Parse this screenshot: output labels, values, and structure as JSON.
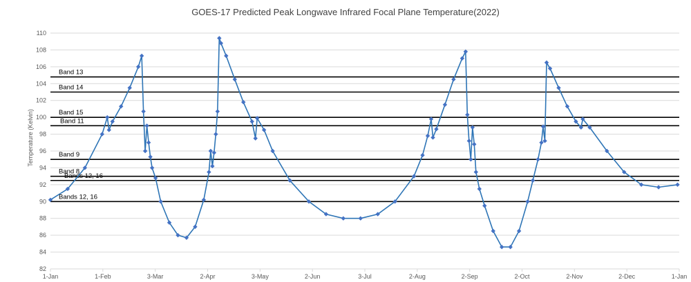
{
  "colors": {
    "series": "#2E75B6",
    "marker": "#4472C4",
    "grid": "#D9D9D9",
    "band_line": "#000000",
    "text": "#595959"
  },
  "chart_data": {
    "type": "line",
    "title": "GOES-17 Predicted Peak Longwave Infrared Focal Plane Temperature(2022)",
    "xlabel": "",
    "ylabel": "Temperature (Kelvin)",
    "xlim": [
      "2022-01-01",
      "2023-01-01"
    ],
    "ylim": [
      82,
      110
    ],
    "grid": "horizontal",
    "x_ticks": [
      "1-Jan",
      "1-Feb",
      "3-Mar",
      "2-Apr",
      "3-May",
      "2-Jun",
      "3-Jul",
      "2-Aug",
      "2-Sep",
      "2-Oct",
      "2-Nov",
      "2-Dec",
      "1-Jan"
    ],
    "y_ticks": [
      "82",
      "84",
      "86",
      "88",
      "90",
      "92",
      "94",
      "96",
      "98",
      "100",
      "102",
      "104",
      "106",
      "108",
      "110"
    ],
    "reference_lines": [
      {
        "label": "Band 13",
        "y": 104.8
      },
      {
        "label": "Band 14",
        "y": 103.0
      },
      {
        "label": "Band 15",
        "y": 100.0
      },
      {
        "label": "Band 11",
        "y": 99.0
      },
      {
        "label": "Band 9",
        "y": 95.0
      },
      {
        "label": "Band 8",
        "y": 93.0
      },
      {
        "label": "Bands 12, 16",
        "y": 92.5
      },
      {
        "label": "Bands 12, 16",
        "y": 90.0
      }
    ],
    "series": [
      {
        "points": [
          [
            "2022-01-01",
            90.2
          ],
          [
            "2022-01-11",
            91.5
          ],
          [
            "2022-01-21",
            94.0
          ],
          [
            "2022-01-31",
            98.0
          ],
          [
            "2022-02-03",
            100.0
          ],
          [
            "2022-02-04",
            98.5
          ],
          [
            "2022-02-06",
            99.5
          ],
          [
            "2022-02-11",
            101.3
          ],
          [
            "2022-02-16",
            103.5
          ],
          [
            "2022-02-21",
            106.0
          ],
          [
            "2022-02-23",
            107.3
          ],
          [
            "2022-02-24",
            100.7
          ],
          [
            "2022-02-25",
            96.0
          ],
          [
            "2022-02-26",
            99.0
          ],
          [
            "2022-02-27",
            97.0
          ],
          [
            "2022-02-28",
            95.3
          ],
          [
            "2022-03-01",
            94.0
          ],
          [
            "2022-03-03",
            92.8
          ],
          [
            "2022-03-06",
            90.0
          ],
          [
            "2022-03-11",
            87.5
          ],
          [
            "2022-03-16",
            86.0
          ],
          [
            "2022-03-21",
            85.7
          ],
          [
            "2022-03-26",
            87.0
          ],
          [
            "2022-03-31",
            90.2
          ],
          [
            "2022-04-03",
            93.5
          ],
          [
            "2022-04-04",
            96.0
          ],
          [
            "2022-04-05",
            94.2
          ],
          [
            "2022-04-06",
            95.8
          ],
          [
            "2022-04-07",
            98.0
          ],
          [
            "2022-04-08",
            100.7
          ],
          [
            "2022-04-09",
            109.4
          ],
          [
            "2022-04-10",
            108.8
          ],
          [
            "2022-04-13",
            107.3
          ],
          [
            "2022-04-18",
            104.5
          ],
          [
            "2022-04-23",
            101.8
          ],
          [
            "2022-04-28",
            99.5
          ],
          [
            "2022-04-30",
            97.5
          ],
          [
            "2022-05-01",
            99.9
          ],
          [
            "2022-05-05",
            98.5
          ],
          [
            "2022-05-10",
            96.0
          ],
          [
            "2022-05-20",
            92.5
          ],
          [
            "2022-05-31",
            90.0
          ],
          [
            "2022-06-10",
            88.5
          ],
          [
            "2022-06-20",
            88.0
          ],
          [
            "2022-06-30",
            88.0
          ],
          [
            "2022-07-10",
            88.5
          ],
          [
            "2022-07-20",
            90.0
          ],
          [
            "2022-07-31",
            93.0
          ],
          [
            "2022-08-05",
            95.5
          ],
          [
            "2022-08-08",
            97.8
          ],
          [
            "2022-08-10",
            99.8
          ],
          [
            "2022-08-11",
            97.6
          ],
          [
            "2022-08-13",
            98.6
          ],
          [
            "2022-08-18",
            101.5
          ],
          [
            "2022-08-23",
            104.5
          ],
          [
            "2022-08-28",
            107.0
          ],
          [
            "2022-08-30",
            107.8
          ],
          [
            "2022-08-31",
            100.3
          ],
          [
            "2022-09-01",
            97.2
          ],
          [
            "2022-09-02",
            95.0
          ],
          [
            "2022-09-03",
            98.8
          ],
          [
            "2022-09-04",
            96.8
          ],
          [
            "2022-09-05",
            93.5
          ],
          [
            "2022-09-07",
            91.5
          ],
          [
            "2022-09-10",
            89.5
          ],
          [
            "2022-09-15",
            86.5
          ],
          [
            "2022-09-20",
            84.6
          ],
          [
            "2022-09-25",
            84.6
          ],
          [
            "2022-09-30",
            86.5
          ],
          [
            "2022-10-05",
            90.0
          ],
          [
            "2022-10-08",
            92.5
          ],
          [
            "2022-10-11",
            95.0
          ],
          [
            "2022-10-13",
            97.0
          ],
          [
            "2022-10-14",
            98.9
          ],
          [
            "2022-10-15",
            97.2
          ],
          [
            "2022-10-16",
            106.5
          ],
          [
            "2022-10-18",
            105.8
          ],
          [
            "2022-10-23",
            103.5
          ],
          [
            "2022-10-28",
            101.3
          ],
          [
            "2022-11-02",
            99.5
          ],
          [
            "2022-11-05",
            98.8
          ],
          [
            "2022-11-06",
            99.8
          ],
          [
            "2022-11-10",
            98.8
          ],
          [
            "2022-11-20",
            96.0
          ],
          [
            "2022-11-30",
            93.5
          ],
          [
            "2022-12-10",
            92.0
          ],
          [
            "2022-12-20",
            91.7
          ],
          [
            "2022-12-31",
            92.0
          ]
        ]
      }
    ]
  }
}
